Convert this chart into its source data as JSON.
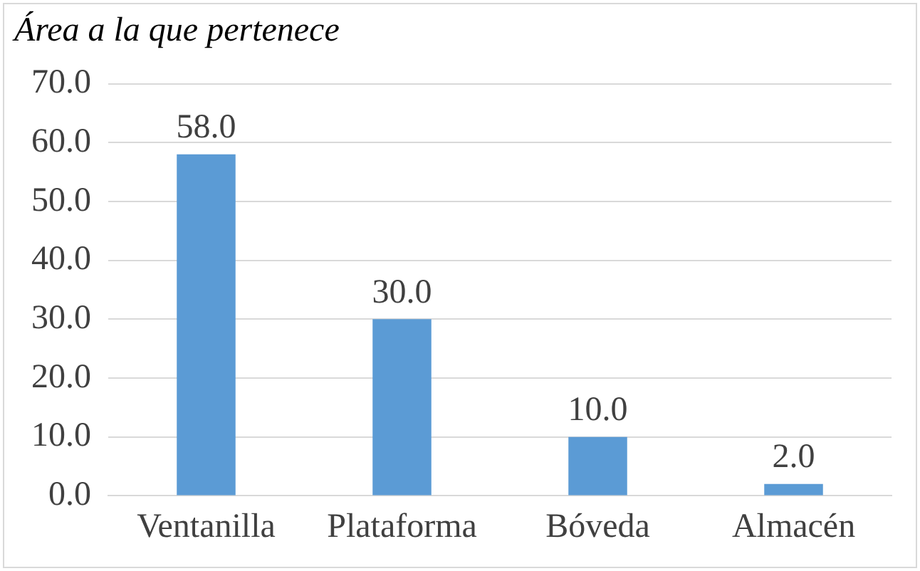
{
  "chart_data": {
    "type": "bar",
    "title": "Área a la que pertenece",
    "categories": [
      "Ventanilla",
      "Plataforma",
      "Bóveda",
      "Almacén"
    ],
    "values": [
      58,
      30,
      10,
      2
    ],
    "value_labels": [
      "58.0",
      "30.0",
      "10.0",
      "2.0"
    ],
    "color": "#5b9bd5",
    "ylim": [
      0,
      70
    ],
    "yticks": [
      {
        "value": 0,
        "label": "0.0"
      },
      {
        "value": 10,
        "label": "10.0"
      },
      {
        "value": 20,
        "label": "20.0"
      },
      {
        "value": 30,
        "label": "30.0"
      },
      {
        "value": 40,
        "label": "40.0"
      },
      {
        "value": 50,
        "label": "50.0"
      },
      {
        "value": 60,
        "label": "60.0"
      },
      {
        "value": 70,
        "label": "70.0"
      }
    ],
    "grid": "y",
    "legend": false
  }
}
